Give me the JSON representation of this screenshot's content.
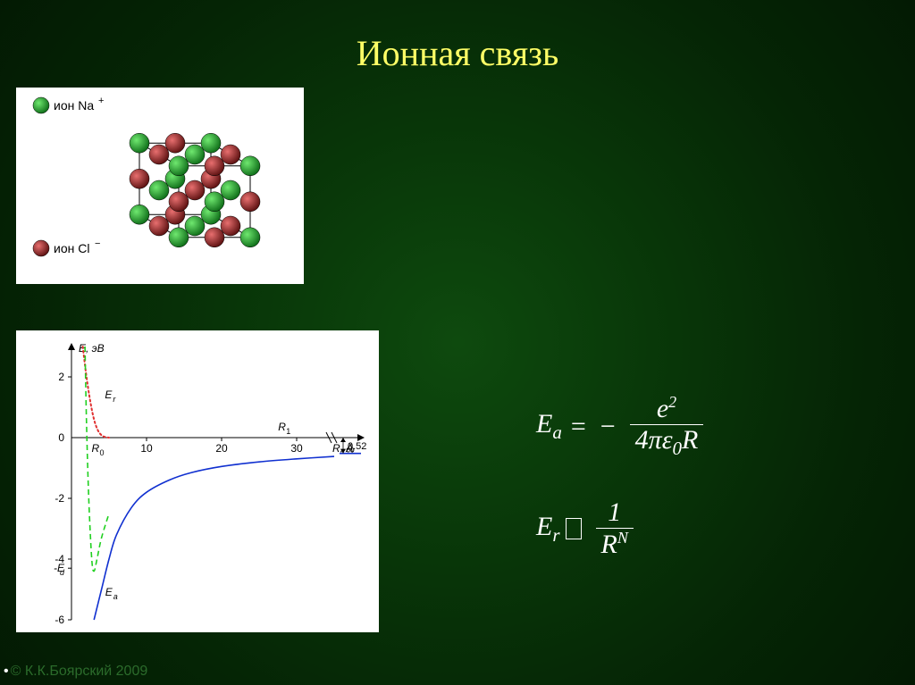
{
  "title": "Ионная связь",
  "copyright": "© К.К.Боярский 2009",
  "lattice": {
    "legend": {
      "na_label": "ион Na",
      "na_sup": "+",
      "cl_label": "ион Cl",
      "cl_sup": "−"
    },
    "colors": {
      "na": "#23a52f",
      "na_dark": "#0d6b17",
      "cl": "#9a1a1a",
      "cl_dark": "#5a0f0f",
      "edge": "#000000",
      "bg": "#ffffff"
    },
    "sphere_radius": 11,
    "legend_sphere_radius": 9,
    "cube_a": 80
  },
  "chart": {
    "type": "line",
    "bg": "#ffffff",
    "axis_color": "#000000",
    "ylabel": "E, эВ",
    "xlabel": "R, Å",
    "ylim": [
      -6,
      3
    ],
    "ytick_step": 2,
    "xticks": [
      10,
      20,
      30
    ],
    "xlim": [
      0,
      35
    ],
    "R0_label": "R₀",
    "R1_label": "R₁",
    "Er_label": "Eᵣ",
    "Ea_label": "Eₐ",
    "Ed_label": "-E_d",
    "inf_label": "∞",
    "asymptote_value_label": "0.52",
    "colors": {
      "attractive": "#1030d0",
      "repulsive": "#e03030",
      "total": "#20d020",
      "text": "#000000"
    },
    "Ea_curve": {
      "R": [
        3,
        4,
        5,
        6,
        8,
        10,
        13,
        16,
        20,
        25,
        30,
        35
      ],
      "E": [
        -6.0,
        -5.0,
        -4.0,
        -3.2,
        -2.3,
        -1.8,
        -1.4,
        -1.15,
        -0.95,
        -0.8,
        -0.7,
        -0.62
      ]
    },
    "Er_curve": {
      "R": [
        1.5,
        2.0,
        2.5,
        3.0,
        3.5,
        4.0,
        4.5,
        5.0
      ],
      "E": [
        3.0,
        2.0,
        1.2,
        0.6,
        0.25,
        0.08,
        0.02,
        0.0
      ]
    },
    "Etot_curve": {
      "R": [
        1.8,
        2.0,
        2.3,
        2.7,
        3.0,
        3.4,
        4.0,
        5.0
      ],
      "E": [
        3.0,
        0.5,
        -2.0,
        -4.0,
        -4.4,
        -4.0,
        -3.3,
        -2.5
      ]
    },
    "Ed_level": -4.3,
    "R0_x": 2.2,
    "R1_x": 28,
    "asymptote_y": -0.52
  },
  "formulas": {
    "Ea": {
      "lhs": "E",
      "lhs_sub": "a",
      "num": "e",
      "num_sup": "2",
      "den_prefix": "4πε",
      "den_sub": "0",
      "den_suffix": "R"
    },
    "Er": {
      "lhs": "E",
      "lhs_sub": "r",
      "num": "1",
      "den": "R",
      "den_sup": "N"
    }
  }
}
